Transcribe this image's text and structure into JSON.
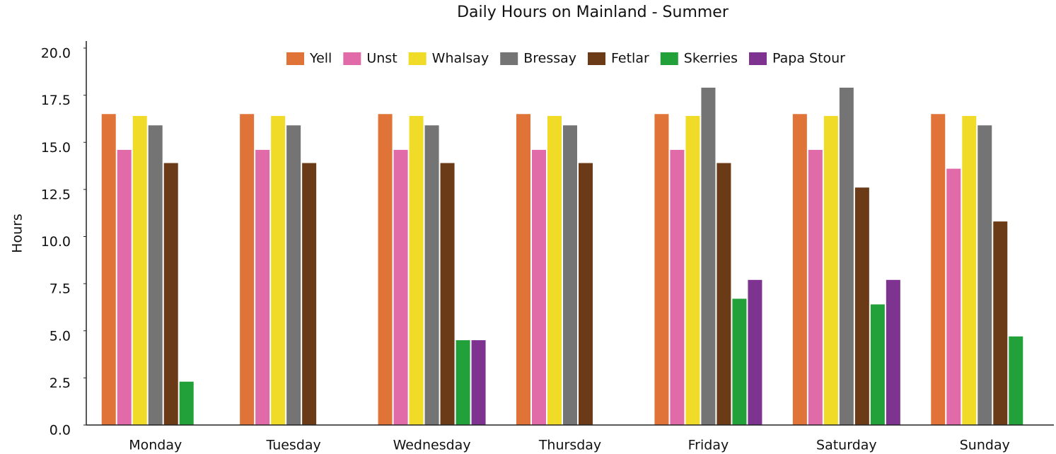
{
  "chart_data": {
    "type": "bar",
    "title": "Daily Hours on Mainland - Summer",
    "ylabel": "Hours",
    "categories": [
      "Monday",
      "Tuesday",
      "Wednesday",
      "Thursday",
      "Friday",
      "Saturday",
      "Sunday"
    ],
    "series": [
      {
        "name": "Yell",
        "color": "#e07338",
        "values": [
          16.5,
          16.5,
          16.5,
          16.5,
          16.5,
          16.5,
          16.5
        ]
      },
      {
        "name": "Unst",
        "color": "#e06ba8",
        "values": [
          14.6,
          14.6,
          14.6,
          14.6,
          14.6,
          14.6,
          13.6
        ]
      },
      {
        "name": "Whalsay",
        "color": "#f0dc28",
        "values": [
          16.4,
          16.4,
          16.4,
          16.4,
          16.4,
          16.4,
          16.4
        ]
      },
      {
        "name": "Bressay",
        "color": "#747474",
        "values": [
          15.9,
          15.9,
          15.9,
          15.9,
          17.9,
          17.9,
          15.9
        ]
      },
      {
        "name": "Fetlar",
        "color": "#6b3a16",
        "values": [
          13.9,
          13.9,
          13.9,
          13.9,
          13.9,
          12.6,
          10.8
        ]
      },
      {
        "name": "Skerries",
        "color": "#22a03a",
        "values": [
          2.3,
          0,
          4.5,
          0,
          6.7,
          6.4,
          4.7
        ]
      },
      {
        "name": "Papa Stour",
        "color": "#7e3391",
        "values": [
          0,
          0,
          4.5,
          0,
          7.7,
          7.7,
          0
        ]
      }
    ],
    "ylim": [
      0,
      20
    ],
    "yticks": [
      {
        "value": 0,
        "label": "0.0"
      },
      2.5,
      {
        "value": 5,
        "label": "5.0"
      },
      7.5,
      {
        "value": 10,
        "label": "10.0"
      },
      12.5,
      {
        "value": 15,
        "label": "15.0"
      },
      17.5,
      {
        "value": 20,
        "label": "20.0"
      }
    ],
    "legend": "top",
    "grid": false
  }
}
